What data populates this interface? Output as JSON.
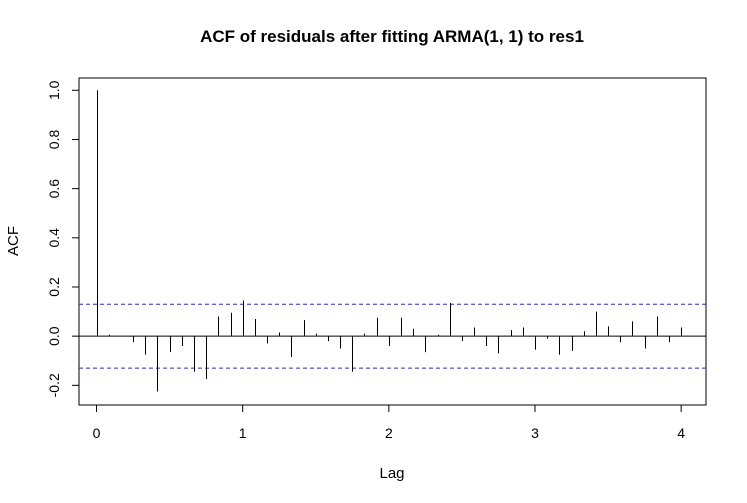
{
  "chart_data": {
    "type": "bar",
    "title": "ACF of residuals after fitting ARMA(1, 1) to res1",
    "xlabel": "Lag",
    "ylabel": "ACF",
    "xlim": [
      -0.12,
      4.17
    ],
    "ylim": [
      -0.28,
      1.05
    ],
    "x_ticks": [
      0,
      1,
      2,
      3,
      4
    ],
    "x_tick_labels": [
      "0",
      "1",
      "2",
      "3",
      "4"
    ],
    "y_ticks": [
      -0.2,
      0.0,
      0.2,
      0.4,
      0.6,
      0.8,
      1.0
    ],
    "y_tick_labels": [
      "-0.2",
      "0.0",
      "0.2",
      "0.4",
      "0.6",
      "0.8",
      "1.0"
    ],
    "confidence_bound": 0.13,
    "grid": false,
    "lags": [
      0,
      0.0833,
      0.1667,
      0.25,
      0.3333,
      0.4167,
      0.5,
      0.5833,
      0.6667,
      0.75,
      0.8333,
      0.9167,
      1.0,
      1.0833,
      1.1667,
      1.25,
      1.3333,
      1.4167,
      1.5,
      1.5833,
      1.6667,
      1.75,
      1.8333,
      1.9167,
      2.0,
      2.0833,
      2.1667,
      2.25,
      2.3333,
      2.4167,
      2.5,
      2.5833,
      2.6667,
      2.75,
      2.8333,
      2.9167,
      3.0,
      3.0833,
      3.1667,
      3.25,
      3.3333,
      3.4167,
      3.5,
      3.5833,
      3.6667,
      3.75,
      3.8333,
      3.9167,
      4.0
    ],
    "acf": [
      1.0,
      0.005,
      0.0,
      -0.025,
      -0.075,
      -0.225,
      -0.065,
      -0.04,
      -0.145,
      -0.175,
      0.08,
      0.095,
      0.145,
      0.07,
      -0.03,
      0.015,
      -0.085,
      0.065,
      0.01,
      -0.02,
      -0.05,
      -0.145,
      0.01,
      0.075,
      -0.04,
      0.075,
      0.03,
      -0.065,
      0.005,
      0.135,
      -0.02,
      0.035,
      -0.04,
      -0.07,
      0.025,
      0.035,
      -0.055,
      -0.01,
      -0.075,
      -0.06,
      0.02,
      0.1,
      0.04,
      -0.025,
      0.06,
      -0.05,
      0.08,
      -0.025,
      0.035
    ]
  }
}
